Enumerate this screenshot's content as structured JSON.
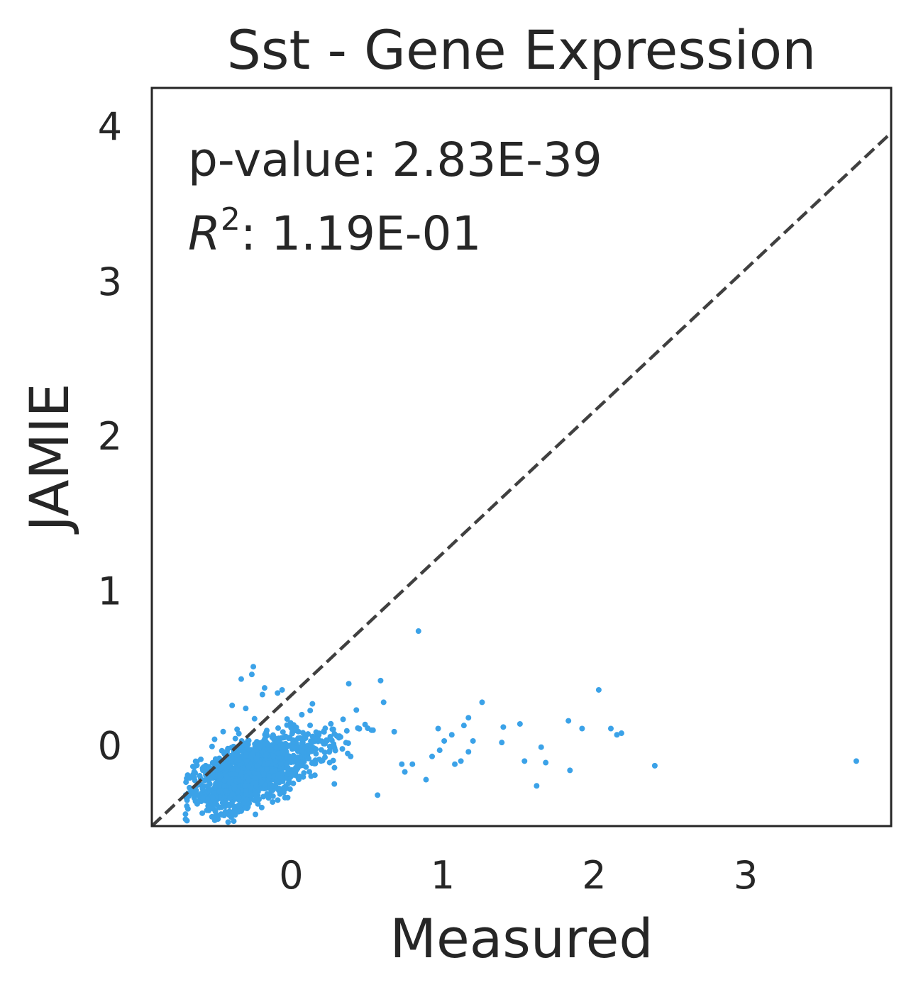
{
  "chart_data": {
    "type": "scatter",
    "title": "Sst - Gene Expression",
    "xlabel": "Measured",
    "ylabel": "JAMIE",
    "xlim": [
      -0.92,
      3.96
    ],
    "ylim": [
      -0.52,
      4.25
    ],
    "xticks": [
      0,
      1,
      2,
      3
    ],
    "yticks": [
      0,
      1,
      2,
      3,
      4
    ],
    "grid": false,
    "annotations": {
      "pvalue_text": "p-value: 2.83E-39",
      "r2_base": "R",
      "r2_exp": "2",
      "r2_value": ": 1.19E-01"
    },
    "reference_line": {
      "style": "dashed",
      "points": [
        [
          -0.92,
          -0.52
        ],
        [
          3.96,
          3.96
        ]
      ]
    },
    "point_color": "#3ba2e8",
    "line_color": "#404040",
    "points": [
      [
        0.84,
        0.74
      ],
      [
        -0.25,
        0.51
      ],
      [
        -0.26,
        0.46
      ],
      [
        -0.33,
        0.43
      ],
      [
        0.59,
        0.42
      ],
      [
        0.38,
        0.4
      ],
      [
        2.03,
        0.36
      ],
      [
        -0.06,
        0.36
      ],
      [
        -0.09,
        0.34
      ],
      [
        -0.19,
        0.33
      ],
      [
        0.61,
        0.28
      ],
      [
        1.26,
        0.28
      ],
      [
        0.14,
        0.27
      ],
      [
        -0.39,
        0.26
      ],
      [
        -0.3,
        0.24
      ],
      [
        0.43,
        0.23
      ],
      [
        0.07,
        0.2
      ],
      [
        1.17,
        0.18
      ],
      [
        1.83,
        0.16
      ],
      [
        1.51,
        0.14
      ],
      [
        1.4,
        0.12
      ],
      [
        1.14,
        0.13
      ],
      [
        0.97,
        0.11
      ],
      [
        1.92,
        0.11
      ],
      [
        2.11,
        0.11
      ],
      [
        0.53,
        0.1
      ],
      [
        0.68,
        0.09
      ],
      [
        2.15,
        0.07
      ],
      [
        2.18,
        0.08
      ],
      [
        1.06,
        0.07
      ],
      [
        1.01,
        0.03
      ],
      [
        1.39,
        0.02
      ],
      [
        1.2,
        0.03
      ],
      [
        1.65,
        -0.01
      ],
      [
        1.17,
        -0.04
      ],
      [
        0.98,
        -0.03
      ],
      [
        0.93,
        -0.07
      ],
      [
        1.54,
        -0.1
      ],
      [
        1.68,
        -0.11
      ],
      [
        2.4,
        -0.13
      ],
      [
        3.73,
        -0.1
      ],
      [
        1.08,
        -0.12
      ],
      [
        1.12,
        -0.1
      ],
      [
        0.8,
        -0.12
      ],
      [
        0.73,
        -0.12
      ],
      [
        1.84,
        -0.16
      ],
      [
        0.89,
        -0.22
      ],
      [
        1.62,
        -0.26
      ],
      [
        0.57,
        -0.32
      ],
      [
        0.75,
        -0.17
      ]
    ],
    "cluster": {
      "n": 1400,
      "x_mean": -0.3,
      "x_sd": 0.17,
      "y_mean": -0.19,
      "y_sd": 0.1,
      "slope": 0.35,
      "x_min": -0.7,
      "y_min": -0.5
    }
  }
}
